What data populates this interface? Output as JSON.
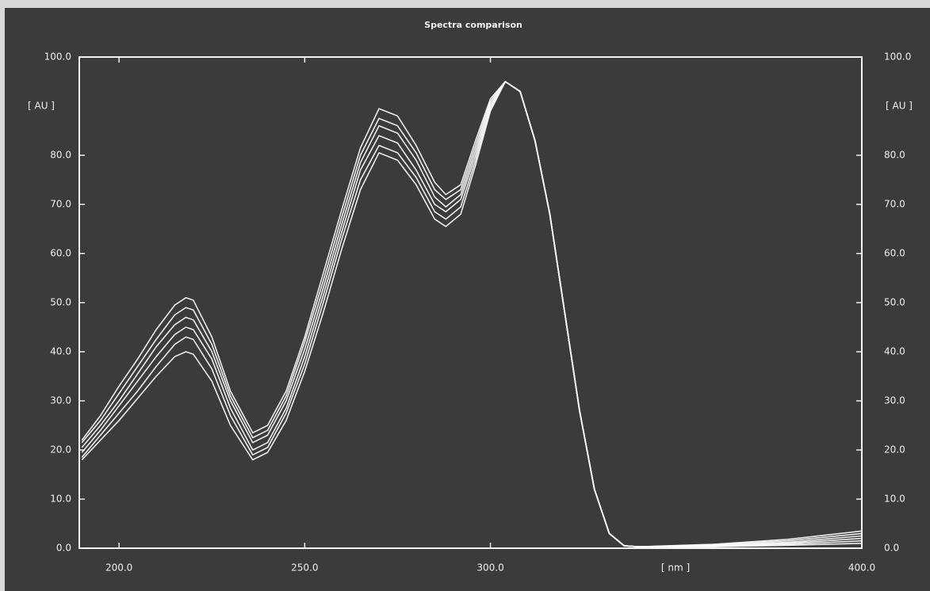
{
  "chart_data": {
    "type": "line",
    "title": "Spectra comparison",
    "x_label": "[ nm ]",
    "y_label": "[ AU ]",
    "x": [
      190,
      195,
      200,
      205,
      210,
      215,
      218,
      220,
      225,
      230,
      236,
      240,
      245,
      250,
      255,
      260,
      265,
      270,
      275,
      280,
      285,
      288,
      292,
      296,
      300,
      304,
      308,
      312,
      316,
      320,
      324,
      328,
      332,
      336,
      340,
      360,
      380,
      400
    ],
    "series": [
      {
        "color": "#ffffff",
        "values": [
          18,
          22,
          26,
          30.5,
          35,
          39,
          40,
          39.5,
          34,
          25,
          18,
          19.5,
          26,
          36,
          48,
          61,
          73,
          80.5,
          79,
          74,
          67,
          65.5,
          68,
          78,
          89,
          95,
          93,
          83,
          68,
          48,
          28,
          12,
          3,
          0.5,
          0.3,
          0.3,
          0.6,
          1
        ]
      },
      {
        "color": "#ffffff",
        "values": [
          18.5,
          23,
          27.5,
          32,
          37,
          41.5,
          43,
          42.5,
          36.5,
          27,
          19,
          20.5,
          27.5,
          37.5,
          50,
          63,
          75,
          82,
          80.5,
          75.5,
          68.5,
          67,
          69.5,
          79,
          89.5,
          95,
          93,
          83,
          68,
          48,
          28,
          12,
          3,
          0.5,
          0.3,
          0.4,
          0.8,
          1.5
        ]
      },
      {
        "color": "#ffffff",
        "values": [
          19.5,
          24,
          29,
          34,
          39,
          43.5,
          45,
          44.5,
          38.5,
          28.5,
          20,
          21.5,
          28.5,
          39,
          51.5,
          64.5,
          77,
          84,
          82.5,
          77,
          70,
          68.5,
          71,
          80,
          90,
          95,
          93,
          83,
          68,
          48,
          28,
          12,
          3,
          0.5,
          0.3,
          0.5,
          1,
          2
        ]
      },
      {
        "color": "#ffffff",
        "values": [
          20.5,
          25,
          30,
          35.5,
          41,
          45.5,
          47,
          46.5,
          40,
          30,
          21.5,
          23,
          30,
          40.5,
          53,
          66,
          78.5,
          86,
          84.5,
          79,
          71.5,
          69.5,
          72,
          81,
          90.5,
          95,
          93,
          83,
          68,
          48,
          28,
          12,
          3,
          0.5,
          0.3,
          0.6,
          1.2,
          2.5
        ]
      },
      {
        "color": "#ffffff",
        "values": [
          21.5,
          26,
          31.5,
          37,
          42.5,
          47.5,
          49,
          48.5,
          41.5,
          31,
          22.5,
          24,
          31,
          42,
          54.5,
          67.5,
          80,
          87.5,
          86,
          80.5,
          73,
          71,
          73,
          82,
          91,
          95,
          93,
          83,
          68,
          48,
          28,
          12,
          3,
          0.5,
          0.3,
          0.7,
          1.5,
          3
        ]
      },
      {
        "color": "#ffffff",
        "values": [
          22,
          27,
          33,
          38.5,
          44.5,
          49.5,
          51,
          50.5,
          43,
          32,
          23.5,
          25,
          32,
          43,
          56,
          69,
          81.5,
          89.5,
          88,
          82,
          74.5,
          72,
          74,
          83,
          91.5,
          95,
          93,
          83,
          68,
          48,
          28,
          12,
          3,
          0.5,
          0.3,
          0.8,
          1.8,
          3.5
        ]
      }
    ],
    "xlim": [
      189.3,
      400
    ],
    "xticks": [
      {
        "value": 200,
        "label": "200.0"
      },
      {
        "value": 250,
        "label": "250.0"
      },
      {
        "value": 300,
        "label": "300.0"
      },
      {
        "value": 400,
        "label": "400.0"
      }
    ],
    "ylim": [
      0,
      100
    ],
    "yticks": [
      {
        "value": 0,
        "label": "0.0"
      },
      {
        "value": 10,
        "label": "10.0"
      },
      {
        "value": 20,
        "label": "20.0"
      },
      {
        "value": 30,
        "label": "30.0"
      },
      {
        "value": 40,
        "label": "40.0"
      },
      {
        "value": 50,
        "label": "50.0"
      },
      {
        "value": 60,
        "label": "60.0"
      },
      {
        "value": 70,
        "label": "70.0"
      },
      {
        "value": 80,
        "label": "80.0"
      },
      {
        "value": 100,
        "label": "100.0"
      }
    ],
    "grid": false
  }
}
